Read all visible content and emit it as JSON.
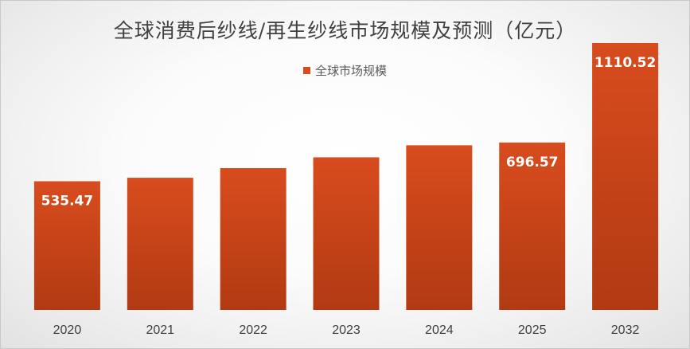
{
  "chart_data": {
    "type": "bar",
    "title": "全球消费后纱线/再生纱线市场规模及预测（亿元）",
    "legend": {
      "label": "全球市场规模",
      "position": "top"
    },
    "categories": [
      "2020",
      "2021",
      "2022",
      "2023",
      "2024",
      "2025",
      "2032"
    ],
    "series": [
      {
        "name": "全球市场规模",
        "values": [
          535.47,
          550,
          590,
          635,
          685,
          696.57,
          1110.52
        ],
        "data_labels": [
          "535.47",
          null,
          null,
          null,
          null,
          "696.57",
          "1110.52"
        ]
      }
    ],
    "ylim": [
      0,
      1200
    ],
    "grid": false,
    "xlabel": "",
    "ylabel": "",
    "colors": {
      "bar_top": "#d84c1e",
      "bar_bottom": "#b23a12"
    }
  }
}
